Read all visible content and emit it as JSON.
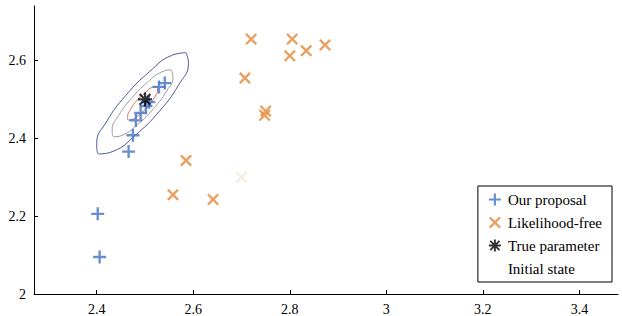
{
  "chart_data": {
    "type": "scatter",
    "xlim": [
      2.27,
      3.48
    ],
    "ylim": [
      2,
      2.74
    ],
    "xticks": [
      2.4,
      2.6,
      2.8,
      3,
      3.2,
      3.4
    ],
    "yticks": [
      2,
      2.2,
      2.4,
      2.6
    ],
    "grid": false,
    "legend": "lower right",
    "series": [
      {
        "name": "Our proposal",
        "color": "#4472c4",
        "marker": "plus",
        "x": [
          2.406,
          2.402,
          2.466,
          2.475,
          2.481,
          2.491,
          2.502,
          2.508,
          2.529,
          2.541
        ],
        "y": [
          2.095,
          2.206,
          2.366,
          2.408,
          2.446,
          2.465,
          2.483,
          2.493,
          2.532,
          2.542
        ]
      },
      {
        "name": "Likelihood-free",
        "color": "#e08a3c",
        "marker": "x",
        "x": [
          2.7,
          2.72,
          2.707,
          2.805,
          2.8,
          2.834,
          2.873,
          2.75,
          2.748,
          2.585,
          2.558,
          2.641
        ],
        "y": [
          2.3,
          2.655,
          2.555,
          2.655,
          2.612,
          2.625,
          2.64,
          2.47,
          2.459,
          2.343,
          2.255,
          2.243
        ]
      },
      {
        "name": "True parameter",
        "color": "#000000",
        "marker": "asterisk",
        "x": [
          2.5
        ],
        "y": [
          2.5
        ]
      },
      {
        "name": "Initial state",
        "color": "#000000",
        "marker": "circle",
        "x": [
          2.7
        ],
        "y": [
          2.3
        ]
      }
    ],
    "contours": [
      {
        "color": "#4a5a9a",
        "x": [
          2.585,
          2.59,
          2.57,
          2.53,
          2.48,
          2.435,
          2.405,
          2.4,
          2.42,
          2.46,
          2.51,
          2.555,
          2.585
        ],
        "y": [
          2.62,
          2.593,
          2.538,
          2.47,
          2.408,
          2.367,
          2.36,
          2.387,
          2.442,
          2.51,
          2.572,
          2.613,
          2.62
        ]
      },
      {
        "color": "#a09aa0",
        "x": [
          2.554,
          2.558,
          2.545,
          2.518,
          2.485,
          2.455,
          2.436,
          2.432,
          2.445,
          2.472,
          2.505,
          2.535,
          2.554
        ],
        "y": [
          2.576,
          2.558,
          2.522,
          2.477,
          2.436,
          2.409,
          2.404,
          2.422,
          2.458,
          2.503,
          2.544,
          2.571,
          2.576
        ]
      },
      {
        "color": "#d07070",
        "x": [
          2.525,
          2.526,
          2.52,
          2.507,
          2.49,
          2.475,
          2.465,
          2.464,
          2.47,
          2.483,
          2.5,
          2.515,
          2.525
        ],
        "y": [
          2.533,
          2.524,
          2.506,
          2.483,
          2.463,
          2.449,
          2.447,
          2.456,
          2.474,
          2.497,
          2.517,
          2.531,
          2.533
        ]
      }
    ]
  }
}
